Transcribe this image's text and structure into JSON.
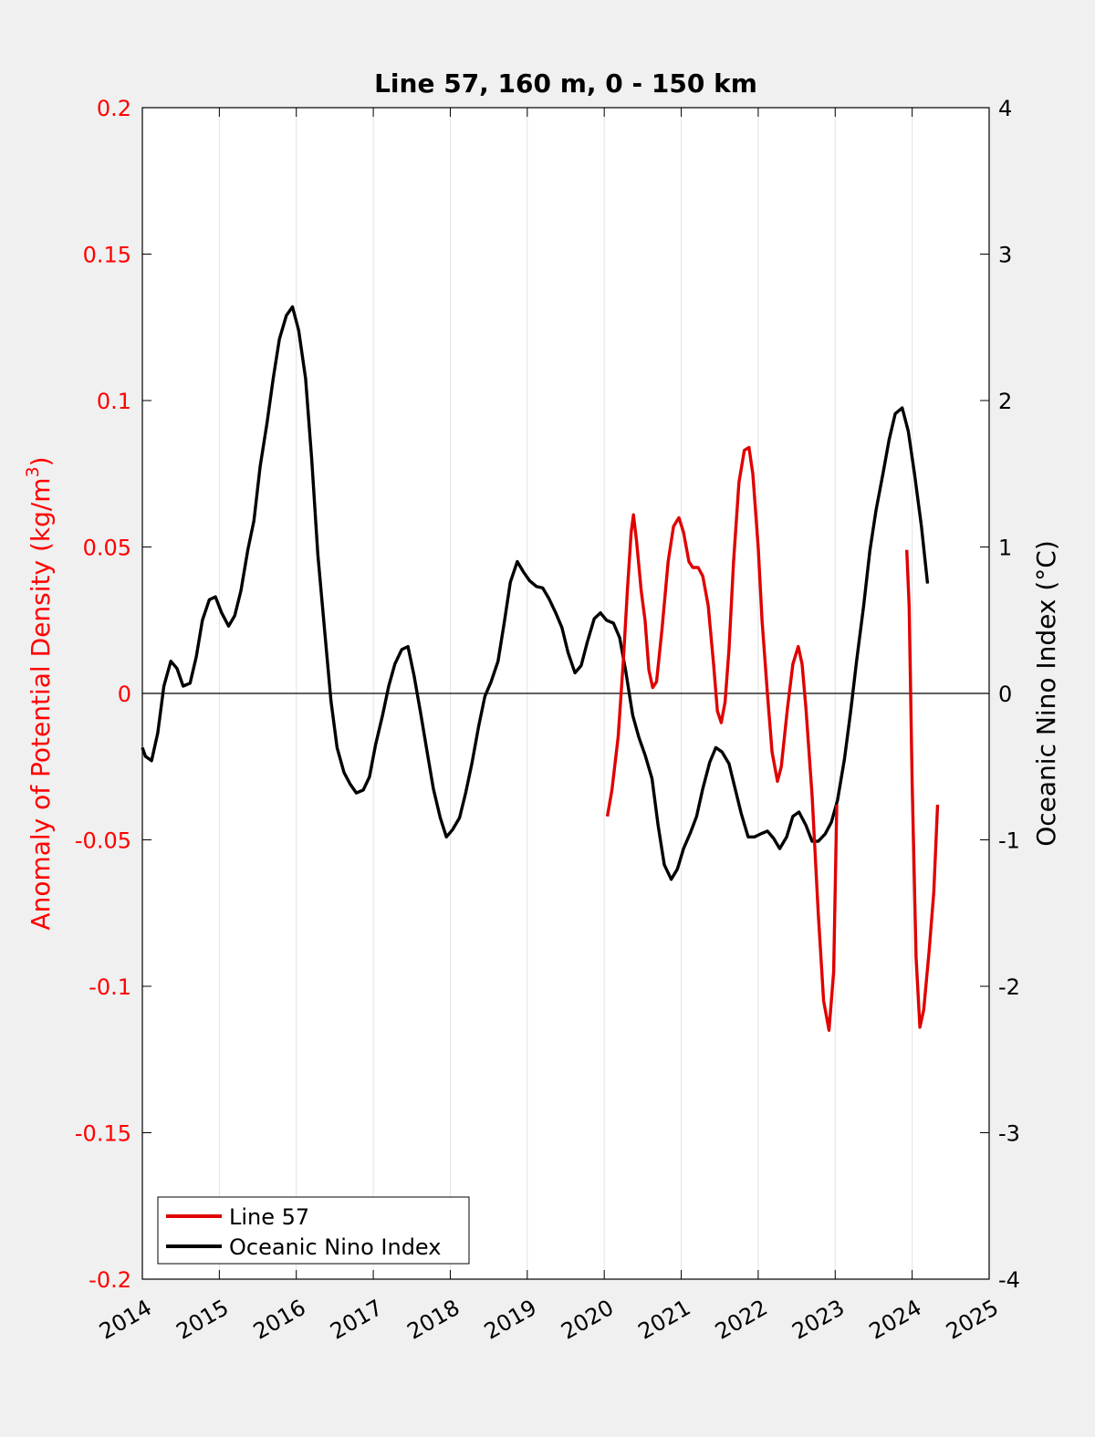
{
  "chart_data": {
    "type": "line",
    "title": "Line 57, 160 m, 0 - 150 km",
    "ylabel_left_prefix": "Anomaly of Potential Density (kg/m",
    "ylabel_left_sup": "3",
    "ylabel_left_suffix": ")",
    "ylabel_right": "Oceanic Nino Index (°C)",
    "xlabel": "",
    "xlim": [
      2014,
      2025
    ],
    "ylim_left": [
      -0.2,
      0.2
    ],
    "ylim_right": [
      -4,
      4
    ],
    "x_ticks": [
      "2014",
      "2015",
      "2016",
      "2017",
      "2018",
      "2019",
      "2020",
      "2021",
      "2022",
      "2023",
      "2024",
      "2025"
    ],
    "y_ticks_left": [
      "0.2",
      "0.15",
      "0.1",
      "0.05",
      "0",
      "-0.05",
      "-0.1",
      "-0.15",
      "-0.2"
    ],
    "y_ticks_right": [
      "4",
      "3",
      "2",
      "1",
      "0",
      "-1",
      "-2",
      "-3",
      "-4"
    ],
    "grid": "vertical",
    "legend_position": "bottom-left",
    "legend": [
      "Line 57",
      "Oceanic Nino Index"
    ],
    "colors": {
      "left_axis": "#ff0000",
      "line57": "#e00000",
      "oni": "#000000"
    },
    "series": [
      {
        "name": "Line 57",
        "axis": "left",
        "segments": [
          [
            [
              2020.04,
              -0.042
            ],
            [
              2020.1,
              -0.033
            ],
            [
              2020.18,
              -0.015
            ],
            [
              2020.25,
              0.012
            ],
            [
              2020.3,
              0.035
            ],
            [
              2020.35,
              0.055
            ],
            [
              2020.38,
              0.061
            ],
            [
              2020.42,
              0.052
            ],
            [
              2020.48,
              0.035
            ],
            [
              2020.53,
              0.025
            ],
            [
              2020.58,
              0.008
            ],
            [
              2020.63,
              0.002
            ],
            [
              2020.68,
              0.004
            ],
            [
              2020.75,
              0.022
            ],
            [
              2020.83,
              0.045
            ],
            [
              2020.9,
              0.057
            ],
            [
              2020.97,
              0.06
            ],
            [
              2021.03,
              0.055
            ],
            [
              2021.1,
              0.045
            ],
            [
              2021.15,
              0.043
            ],
            [
              2021.22,
              0.043
            ],
            [
              2021.28,
              0.04
            ],
            [
              2021.35,
              0.03
            ],
            [
              2021.42,
              0.01
            ],
            [
              2021.47,
              -0.006
            ],
            [
              2021.52,
              -0.01
            ],
            [
              2021.57,
              -0.003
            ],
            [
              2021.62,
              0.015
            ],
            [
              2021.68,
              0.045
            ],
            [
              2021.75,
              0.072
            ],
            [
              2021.82,
              0.083
            ],
            [
              2021.88,
              0.084
            ],
            [
              2021.93,
              0.075
            ],
            [
              2022.0,
              0.05
            ],
            [
              2022.05,
              0.025
            ],
            [
              2022.12,
              0.0
            ],
            [
              2022.18,
              -0.02
            ],
            [
              2022.25,
              -0.03
            ],
            [
              2022.3,
              -0.025
            ],
            [
              2022.38,
              -0.005
            ],
            [
              2022.45,
              0.01
            ],
            [
              2022.52,
              0.016
            ],
            [
              2022.57,
              0.01
            ],
            [
              2022.62,
              -0.005
            ],
            [
              2022.7,
              -0.035
            ],
            [
              2022.78,
              -0.075
            ],
            [
              2022.85,
              -0.105
            ],
            [
              2022.92,
              -0.115
            ],
            [
              2022.98,
              -0.095
            ],
            [
              2023.02,
              -0.038
            ]
          ],
          [
            [
              2023.93,
              0.049
            ],
            [
              2023.96,
              0.03
            ],
            [
              2024.0,
              -0.03
            ],
            [
              2024.05,
              -0.09
            ],
            [
              2024.1,
              -0.114
            ],
            [
              2024.15,
              -0.108
            ],
            [
              2024.22,
              -0.088
            ],
            [
              2024.28,
              -0.068
            ],
            [
              2024.33,
              -0.038
            ]
          ]
        ]
      },
      {
        "name": "Oceanic Nino Index",
        "axis": "right",
        "points": [
          [
            2014.0,
            -0.37
          ],
          [
            2014.04,
            -0.43
          ],
          [
            2014.12,
            -0.46
          ],
          [
            2014.2,
            -0.27
          ],
          [
            2014.28,
            0.05
          ],
          [
            2014.37,
            0.22
          ],
          [
            2014.45,
            0.17
          ],
          [
            2014.53,
            0.05
          ],
          [
            2014.62,
            0.07
          ],
          [
            2014.7,
            0.25
          ],
          [
            2014.78,
            0.5
          ],
          [
            2014.87,
            0.64
          ],
          [
            2014.95,
            0.66
          ],
          [
            2015.03,
            0.55
          ],
          [
            2015.12,
            0.46
          ],
          [
            2015.2,
            0.53
          ],
          [
            2015.28,
            0.7
          ],
          [
            2015.37,
            0.98
          ],
          [
            2015.45,
            1.18
          ],
          [
            2015.53,
            1.55
          ],
          [
            2015.62,
            1.85
          ],
          [
            2015.7,
            2.15
          ],
          [
            2015.78,
            2.42
          ],
          [
            2015.87,
            2.58
          ],
          [
            2015.95,
            2.64
          ],
          [
            2016.03,
            2.48
          ],
          [
            2016.12,
            2.15
          ],
          [
            2016.2,
            1.6
          ],
          [
            2016.28,
            0.95
          ],
          [
            2016.37,
            0.42
          ],
          [
            2016.45,
            -0.05
          ],
          [
            2016.53,
            -0.37
          ],
          [
            2016.62,
            -0.54
          ],
          [
            2016.7,
            -0.62
          ],
          [
            2016.78,
            -0.68
          ],
          [
            2016.87,
            -0.66
          ],
          [
            2016.95,
            -0.57
          ],
          [
            2017.03,
            -0.35
          ],
          [
            2017.12,
            -0.15
          ],
          [
            2017.2,
            0.05
          ],
          [
            2017.28,
            0.2
          ],
          [
            2017.37,
            0.3
          ],
          [
            2017.45,
            0.32
          ],
          [
            2017.53,
            0.12
          ],
          [
            2017.62,
            -0.15
          ],
          [
            2017.7,
            -0.4
          ],
          [
            2017.78,
            -0.65
          ],
          [
            2017.87,
            -0.85
          ],
          [
            2017.95,
            -0.98
          ],
          [
            2018.03,
            -0.93
          ],
          [
            2018.12,
            -0.85
          ],
          [
            2018.2,
            -0.68
          ],
          [
            2018.28,
            -0.48
          ],
          [
            2018.37,
            -0.22
          ],
          [
            2018.45,
            -0.02
          ],
          [
            2018.53,
            0.08
          ],
          [
            2018.62,
            0.22
          ],
          [
            2018.7,
            0.48
          ],
          [
            2018.78,
            0.76
          ],
          [
            2018.87,
            0.9
          ],
          [
            2018.95,
            0.83
          ],
          [
            2019.03,
            0.77
          ],
          [
            2019.12,
            0.73
          ],
          [
            2019.2,
            0.72
          ],
          [
            2019.28,
            0.65
          ],
          [
            2019.37,
            0.55
          ],
          [
            2019.45,
            0.45
          ],
          [
            2019.53,
            0.28
          ],
          [
            2019.62,
            0.14
          ],
          [
            2019.7,
            0.19
          ],
          [
            2019.78,
            0.35
          ],
          [
            2019.87,
            0.51
          ],
          [
            2019.95,
            0.55
          ],
          [
            2020.03,
            0.5
          ],
          [
            2020.12,
            0.48
          ],
          [
            2020.2,
            0.38
          ],
          [
            2020.28,
            0.15
          ],
          [
            2020.37,
            -0.15
          ],
          [
            2020.45,
            -0.3
          ],
          [
            2020.53,
            -0.42
          ],
          [
            2020.62,
            -0.58
          ],
          [
            2020.7,
            -0.9
          ],
          [
            2020.78,
            -1.17
          ],
          [
            2020.87,
            -1.27
          ],
          [
            2020.95,
            -1.2
          ],
          [
            2021.03,
            -1.06
          ],
          [
            2021.12,
            -0.95
          ],
          [
            2021.2,
            -0.84
          ],
          [
            2021.28,
            -0.65
          ],
          [
            2021.37,
            -0.47
          ],
          [
            2021.45,
            -0.37
          ],
          [
            2021.53,
            -0.4
          ],
          [
            2021.62,
            -0.48
          ],
          [
            2021.7,
            -0.65
          ],
          [
            2021.78,
            -0.82
          ],
          [
            2021.87,
            -0.98
          ],
          [
            2021.95,
            -0.98
          ],
          [
            2022.03,
            -0.96
          ],
          [
            2022.12,
            -0.94
          ],
          [
            2022.2,
            -0.99
          ],
          [
            2022.28,
            -1.06
          ],
          [
            2022.37,
            -0.98
          ],
          [
            2022.45,
            -0.84
          ],
          [
            2022.53,
            -0.81
          ],
          [
            2022.62,
            -0.9
          ],
          [
            2022.7,
            -1.01
          ],
          [
            2022.78,
            -1.01
          ],
          [
            2022.87,
            -0.96
          ],
          [
            2022.95,
            -0.88
          ],
          [
            2023.03,
            -0.73
          ],
          [
            2023.12,
            -0.45
          ],
          [
            2023.2,
            -0.13
          ],
          [
            2023.28,
            0.23
          ],
          [
            2023.37,
            0.6
          ],
          [
            2023.45,
            0.97
          ],
          [
            2023.53,
            1.25
          ],
          [
            2023.62,
            1.5
          ],
          [
            2023.7,
            1.73
          ],
          [
            2023.78,
            1.91
          ],
          [
            2023.87,
            1.95
          ],
          [
            2023.95,
            1.79
          ],
          [
            2024.03,
            1.5
          ],
          [
            2024.12,
            1.14
          ],
          [
            2024.2,
            0.75
          ]
        ]
      }
    ]
  }
}
